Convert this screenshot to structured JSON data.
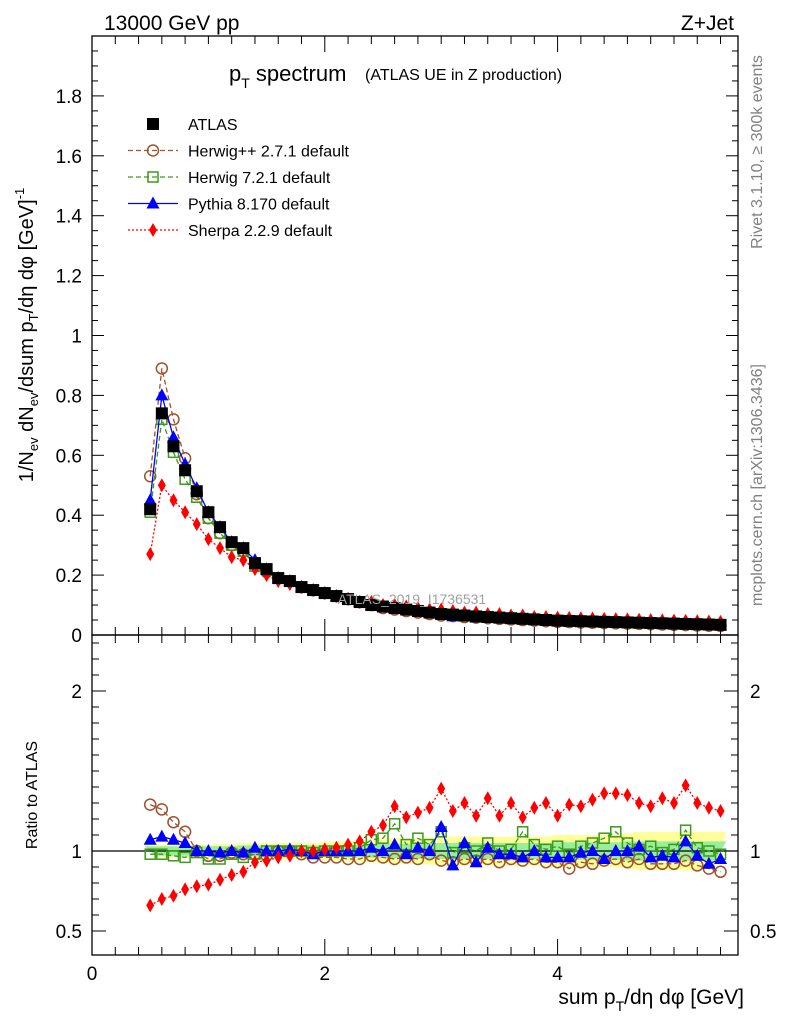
{
  "header": {
    "energy": "13000 GeV pp",
    "process": "Z+Jet"
  },
  "side_labels": {
    "rivet": "Rivet 3.1.10, ≥ 300k events",
    "mcplots": "mcplots.cern.ch [arXiv:1306.3436]"
  },
  "chart_data": [
    {
      "type": "line",
      "panel": "main",
      "title": "p_T spectrum",
      "title_main": "p",
      "title_sub": "T",
      "title_rest": " spectrum",
      "subtitle": "(ATLAS UE in Z production)",
      "watermark": "ATLAS_2019_I1736531",
      "xlabel": "sum p_T/dη dφ [GeV]",
      "ylabel": "1/N_ev dN_ev/dsum p_T/dη dφ [GeV]^-1",
      "xlim": [
        0,
        5.55
      ],
      "ylim": [
        0,
        2.0
      ],
      "yticks": [
        0,
        0.2,
        0.4,
        0.6,
        0.8,
        1,
        1.2,
        1.4,
        1.6,
        1.8
      ],
      "ytick_labels": [
        "0",
        "0.2",
        "0.4",
        "0.6",
        "0.8",
        "1",
        "1.2",
        "1.4",
        "1.6",
        "1.8"
      ],
      "x": [
        0.5,
        0.6,
        0.7,
        0.8,
        0.9,
        1.0,
        1.1,
        1.2,
        1.3,
        1.4,
        1.5,
        1.6,
        1.7,
        1.8,
        1.9,
        2.0,
        2.1,
        2.2,
        2.3,
        2.4,
        2.5,
        2.6,
        2.7,
        2.8,
        2.9,
        3.0,
        3.1,
        3.2,
        3.3,
        3.4,
        3.5,
        3.6,
        3.7,
        3.8,
        3.9,
        4.0,
        4.1,
        4.2,
        4.3,
        4.4,
        4.5,
        4.6,
        4.7,
        4.8,
        4.9,
        5.0,
        5.1,
        5.2,
        5.3,
        5.4
      ],
      "legend": [
        {
          "label": "ATLAS",
          "color": "#000000",
          "marker": "square-filled",
          "style": "none"
        },
        {
          "label": "Herwig++ 2.7.1 default",
          "color": "#a0522d",
          "marker": "circle-open",
          "style": "dashed"
        },
        {
          "label": "Herwig 7.2.1 default",
          "color": "#3a9a1a",
          "marker": "square-open",
          "style": "dashed"
        },
        {
          "label": "Pythia 8.170 default",
          "color": "#0000ff",
          "marker": "triangle-filled",
          "style": "solid"
        },
        {
          "label": "Sherpa 2.2.9 default",
          "color": "#ff0000",
          "marker": "diamond-filled",
          "style": "dotted"
        }
      ],
      "series": [
        {
          "name": "ATLAS",
          "values": [
            0.42,
            0.74,
            0.63,
            0.55,
            0.48,
            0.41,
            0.36,
            0.31,
            0.29,
            0.24,
            0.22,
            0.19,
            0.18,
            0.16,
            0.15,
            0.14,
            0.13,
            0.12,
            0.11,
            0.1,
            0.095,
            0.09,
            0.085,
            0.08,
            0.075,
            0.07,
            0.068,
            0.065,
            0.062,
            0.06,
            0.058,
            0.056,
            0.054,
            0.052,
            0.05,
            0.048,
            0.047,
            0.046,
            0.045,
            0.044,
            0.043,
            0.042,
            0.041,
            0.04,
            0.039,
            0.038,
            0.037,
            0.036,
            0.035,
            0.034
          ]
        },
        {
          "name": "Herwig++ 2.7.1 default",
          "values": [
            0.53,
            0.89,
            0.72,
            0.59,
            0.47,
            0.39,
            0.34,
            0.3,
            0.28,
            0.24,
            0.21,
            0.19,
            0.18,
            0.16,
            0.15,
            0.14,
            0.13,
            0.12,
            0.11,
            0.1,
            0.09,
            0.085,
            0.08,
            0.075,
            0.07,
            0.065,
            0.063,
            0.06,
            0.058,
            0.056,
            0.054,
            0.052,
            0.05,
            0.048,
            0.046,
            0.044,
            0.043,
            0.042,
            0.041,
            0.04,
            0.039,
            0.038,
            0.037,
            0.036,
            0.035,
            0.034,
            0.033,
            0.032,
            0.031,
            0.03
          ]
        },
        {
          "name": "Herwig 7.2.1 default",
          "values": [
            0.41,
            0.72,
            0.61,
            0.52,
            0.46,
            0.39,
            0.34,
            0.3,
            0.28,
            0.23,
            0.22,
            0.19,
            0.18,
            0.16,
            0.15,
            0.14,
            0.13,
            0.12,
            0.11,
            0.1,
            0.095,
            0.09,
            0.085,
            0.08,
            0.075,
            0.07,
            0.068,
            0.064,
            0.062,
            0.06,
            0.058,
            0.056,
            0.054,
            0.052,
            0.05,
            0.048,
            0.047,
            0.046,
            0.045,
            0.044,
            0.043,
            0.042,
            0.041,
            0.04,
            0.039,
            0.038,
            0.037,
            0.036,
            0.035,
            0.034
          ]
        },
        {
          "name": "Pythia 8.170 default",
          "values": [
            0.45,
            0.8,
            0.66,
            0.57,
            0.49,
            0.41,
            0.36,
            0.31,
            0.29,
            0.25,
            0.22,
            0.19,
            0.18,
            0.16,
            0.15,
            0.14,
            0.13,
            0.12,
            0.11,
            0.1,
            0.095,
            0.09,
            0.085,
            0.08,
            0.075,
            0.07,
            0.062,
            0.063,
            0.058,
            0.058,
            0.056,
            0.054,
            0.052,
            0.05,
            0.048,
            0.046,
            0.045,
            0.044,
            0.043,
            0.042,
            0.041,
            0.04,
            0.039,
            0.038,
            0.037,
            0.036,
            0.035,
            0.034,
            0.033,
            0.032
          ]
        },
        {
          "name": "Sherpa 2.2.9 default",
          "values": [
            0.27,
            0.5,
            0.45,
            0.41,
            0.37,
            0.32,
            0.29,
            0.26,
            0.25,
            0.22,
            0.2,
            0.18,
            0.17,
            0.16,
            0.15,
            0.14,
            0.13,
            0.12,
            0.11,
            0.11,
            0.1,
            0.1,
            0.095,
            0.09,
            0.085,
            0.085,
            0.08,
            0.075,
            0.075,
            0.07,
            0.07,
            0.065,
            0.065,
            0.06,
            0.06,
            0.058,
            0.057,
            0.056,
            0.055,
            0.054,
            0.053,
            0.052,
            0.051,
            0.05,
            0.049,
            0.048,
            0.047,
            0.046,
            0.045,
            0.044
          ]
        }
      ]
    },
    {
      "type": "line",
      "panel": "ratio",
      "ylabel": "Ratio to ATLAS",
      "xlabel": "sum p_T/dη dφ [GeV]",
      "xlim": [
        0,
        5.55
      ],
      "ylim": [
        0.35,
        2.35
      ],
      "yticks": [
        0.5,
        1,
        2
      ],
      "ytick_labels": [
        "0.5",
        "1",
        "2"
      ],
      "xticks": [
        0,
        2,
        4
      ],
      "xtick_labels": [
        "0",
        "2",
        "4"
      ],
      "x": [
        0.5,
        0.6,
        0.7,
        0.8,
        0.9,
        1.0,
        1.1,
        1.2,
        1.3,
        1.4,
        1.5,
        1.6,
        1.7,
        1.8,
        1.9,
        2.0,
        2.1,
        2.2,
        2.3,
        2.4,
        2.5,
        2.6,
        2.7,
        2.8,
        2.9,
        3.0,
        3.1,
        3.2,
        3.3,
        3.4,
        3.5,
        3.6,
        3.7,
        3.8,
        3.9,
        4.0,
        4.1,
        4.2,
        4.3,
        4.4,
        4.5,
        4.6,
        4.7,
        4.8,
        4.9,
        5.0,
        5.1,
        5.2,
        5.3,
        5.4
      ],
      "band_inner": [
        0.03,
        0.03,
        0.03,
        0.03,
        0.03,
        0.03,
        0.03,
        0.03,
        0.035,
        0.035,
        0.035,
        0.035,
        0.035,
        0.035,
        0.035,
        0.035,
        0.035,
        0.04,
        0.04,
        0.04,
        0.045,
        0.045,
        0.045,
        0.05,
        0.05,
        0.05,
        0.05,
        0.05,
        0.05,
        0.05,
        0.05,
        0.05,
        0.05,
        0.05,
        0.05,
        0.055,
        0.055,
        0.055,
        0.055,
        0.055,
        0.055,
        0.06,
        0.06,
        0.06,
        0.06,
        0.06,
        0.06,
        0.06,
        0.06,
        0.06
      ],
      "band_outer": [
        0.04,
        0.04,
        0.04,
        0.04,
        0.04,
        0.04,
        0.045,
        0.045,
        0.05,
        0.05,
        0.05,
        0.05,
        0.05,
        0.05,
        0.05,
        0.055,
        0.06,
        0.06,
        0.07,
        0.07,
        0.075,
        0.08,
        0.08,
        0.08,
        0.085,
        0.09,
        0.09,
        0.09,
        0.09,
        0.09,
        0.09,
        0.09,
        0.09,
        0.09,
        0.09,
        0.1,
        0.1,
        0.1,
        0.1,
        0.1,
        0.1,
        0.11,
        0.12,
        0.12,
        0.12,
        0.12,
        0.12,
        0.12,
        0.12,
        0.12
      ],
      "series": [
        {
          "name": "Herwig++ 2.7.1 default",
          "values": [
            1.29,
            1.26,
            1.18,
            1.12,
            1.0,
            0.97,
            0.97,
            0.99,
            0.98,
            0.98,
            0.97,
            1.0,
            1.0,
            0.98,
            0.96,
            0.96,
            0.96,
            0.95,
            0.95,
            0.97,
            0.96,
            0.95,
            0.96,
            0.95,
            0.98,
            0.94,
            0.93,
            0.95,
            0.94,
            0.95,
            0.93,
            0.95,
            0.94,
            0.95,
            0.93,
            0.93,
            0.89,
            0.93,
            0.92,
            0.94,
            0.95,
            0.93,
            0.95,
            0.92,
            0.92,
            0.92,
            0.94,
            0.91,
            0.89,
            0.87
          ]
        },
        {
          "name": "Herwig 7.2.1 default",
          "values": [
            0.98,
            0.98,
            0.97,
            0.96,
            0.99,
            0.95,
            0.95,
            0.98,
            0.96,
            0.98,
            1.0,
            1.0,
            1.0,
            1.0,
            0.99,
            1.0,
            1.0,
            1.0,
            1.02,
            1.07,
            1.08,
            1.17,
            1.04,
            1.08,
            1.04,
            1.12,
            0.99,
            1.02,
            1.0,
            1.05,
            1.0,
            1.01,
            1.12,
            1.04,
            1.01,
            1.03,
            0.98,
            1.03,
            1.05,
            1.08,
            1.12,
            1.05,
            1.01,
            1.03,
            0.99,
            1.01,
            1.13,
            1.02,
            1.0,
            0.98
          ]
        },
        {
          "name": "Pythia 8.170 default",
          "values": [
            1.07,
            1.09,
            1.07,
            1.05,
            1.0,
            1.0,
            0.99,
            1.0,
            0.99,
            1.02,
            1.0,
            1.0,
            1.01,
            1.0,
            0.98,
            1.0,
            1.0,
            1.0,
            1.0,
            1.02,
            1.0,
            1.04,
            0.98,
            1.02,
            1.0,
            1.15,
            0.91,
            1.05,
            0.93,
            1.02,
            0.98,
            0.98,
            0.96,
            1.0,
            0.96,
            0.96,
            0.96,
            0.99,
            1.0,
            0.95,
            1.0,
            1.0,
            1.03,
            0.96,
            0.97,
            0.96,
            1.06,
            0.97,
            0.92,
            0.95
          ]
        },
        {
          "name": "Sherpa 2.2.9 default",
          "values": [
            0.66,
            0.7,
            0.72,
            0.76,
            0.78,
            0.79,
            0.82,
            0.85,
            0.87,
            0.93,
            0.94,
            0.96,
            0.97,
            1.0,
            1.0,
            1.01,
            1.02,
            1.04,
            1.06,
            1.12,
            1.16,
            1.28,
            1.21,
            1.24,
            1.27,
            1.39,
            1.25,
            1.3,
            1.22,
            1.33,
            1.22,
            1.3,
            1.21,
            1.27,
            1.3,
            1.22,
            1.29,
            1.28,
            1.32,
            1.36,
            1.36,
            1.35,
            1.3,
            1.28,
            1.33,
            1.3,
            1.41,
            1.3,
            1.27,
            1.25
          ]
        }
      ]
    }
  ]
}
